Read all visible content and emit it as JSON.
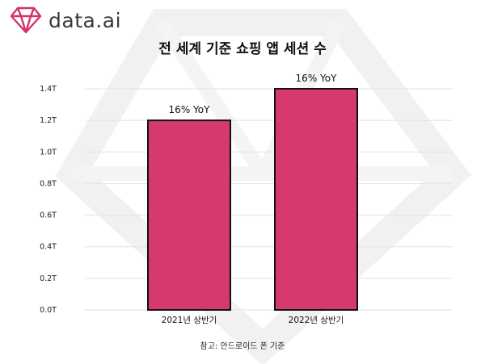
{
  "brand": {
    "name": "data.ai",
    "logo_color": "#d6336c"
  },
  "chart_data": {
    "type": "bar",
    "title": "전 세계 기준 쇼핑 앱 세션 수",
    "categories": [
      "2021년 상반기",
      "2022년 상반기"
    ],
    "values": [
      1.2,
      1.4
    ],
    "data_labels": [
      "16% YoY",
      "16% YoY"
    ],
    "yticks": [
      "0.0T",
      "0.2T",
      "0.4T",
      "0.6T",
      "0.8T",
      "1.0T",
      "1.2T",
      "1.4T"
    ],
    "ylim": [
      0,
      1.4
    ],
    "grid": true,
    "legend": "none",
    "bar_color": "#d6396b"
  },
  "footnote": "참고: 안드로이드 폰 기준"
}
